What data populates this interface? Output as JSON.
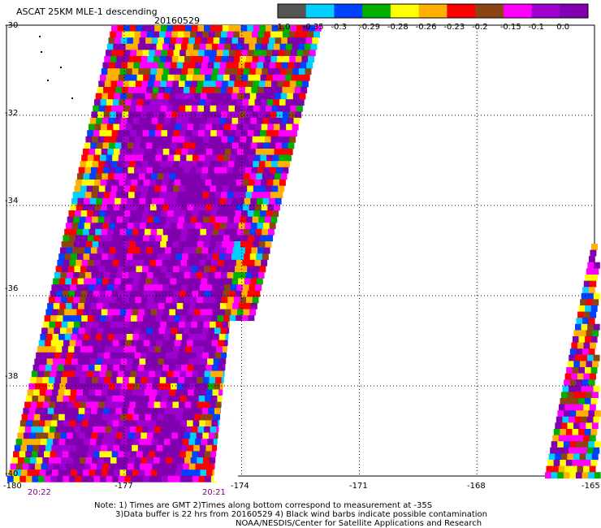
{
  "title": "ASCAT 25KM MLE-1 descending",
  "date": "20160529",
  "legend": {
    "labels": [
      "-1.0",
      "-0.35",
      "-0.3",
      "-0.29",
      "-0.28",
      "-0.26",
      "-0.23",
      "-0.2",
      "-0.15",
      "-0.1",
      "0.0"
    ],
    "colors": [
      "#555555",
      "#00cfff",
      "#0040ff",
      "#00b000",
      "#ffff00",
      "#ffb000",
      "#ff0000",
      "#8b4513",
      "#ff00ff",
      "#a000d0",
      "#8000b0"
    ]
  },
  "lat_labels": [
    "-30",
    "-32",
    "-34",
    "-36",
    "-38",
    "-40"
  ],
  "lon_labels": [
    "-180",
    "-177",
    "-174",
    "-171",
    "-168",
    "-165"
  ],
  "time_labels": [
    "20:22",
    "20:21"
  ],
  "notes": [
    "Note: 1) Times are GMT 2)Times along bottom correspond to measurement at -35S",
    "3)Data buffer is 22 hrs from 20160529 4) Black wind barbs indicate possible contamination",
    "NOAA/NESDIS/Center for Satellite Applications and Research"
  ]
}
